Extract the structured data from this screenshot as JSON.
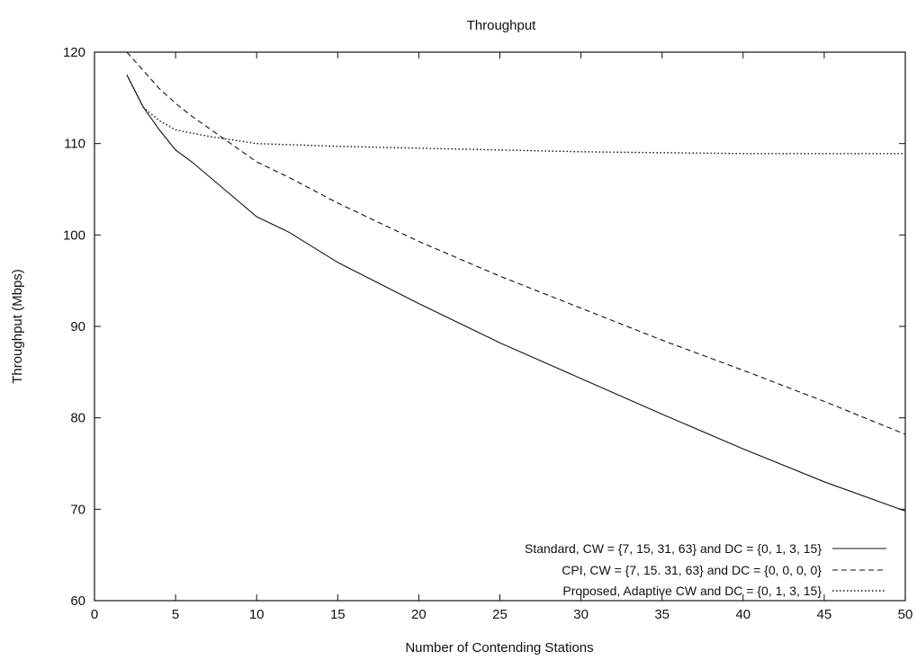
{
  "chart_data": {
    "type": "line",
    "title": "Throughput",
    "xlabel": "Number of Contending Stations",
    "ylabel": "Throughput (Mbps)",
    "xlim": [
      0,
      50
    ],
    "ylim": [
      60,
      120
    ],
    "xticks": [
      0,
      5,
      10,
      15,
      20,
      25,
      30,
      35,
      40,
      45,
      50
    ],
    "yticks": [
      60,
      70,
      80,
      90,
      100,
      110,
      120
    ],
    "grid": false,
    "legend_position": "bottom-right",
    "series": [
      {
        "name": "Standard, CW = {7, 15, 31, 63} and DC = {0, 1, 3, 15}",
        "style": "solid",
        "color": "#111111",
        "x": [
          2,
          3,
          4,
          5,
          6,
          8,
          10,
          12,
          15,
          20,
          25,
          30,
          35,
          40,
          45,
          50
        ],
        "y": [
          117.5,
          114,
          111.5,
          109.3,
          108,
          105,
          102,
          100.3,
          97,
          92.5,
          88.2,
          84.3,
          80.4,
          76.6,
          73,
          69.8
        ]
      },
      {
        "name": "CPI, CW = {7, 15. 31, 63} and DC = {0, 0, 0, 0}",
        "style": "dashed",
        "color": "#111111",
        "x": [
          2,
          3,
          4,
          5,
          6,
          8,
          10,
          12,
          15,
          20,
          25,
          30,
          35,
          40,
          45,
          50
        ],
        "y": [
          120,
          118,
          116,
          114.4,
          113,
          110.5,
          108,
          106.3,
          103.5,
          99.3,
          95.5,
          92,
          88.5,
          85.2,
          81.8,
          78.2
        ]
      },
      {
        "name": "Proposed, Adaptive CW and DC = {0, 1, 3, 15}",
        "style": "dotted",
        "color": "#111111",
        "x": [
          2,
          3,
          4,
          5,
          7,
          10,
          15,
          20,
          25,
          30,
          35,
          40,
          45,
          50
        ],
        "y": [
          117.5,
          114,
          112.5,
          111.5,
          110.8,
          110,
          109.7,
          109.5,
          109.3,
          109.1,
          109,
          108.9,
          108.9,
          108.9
        ]
      }
    ]
  }
}
